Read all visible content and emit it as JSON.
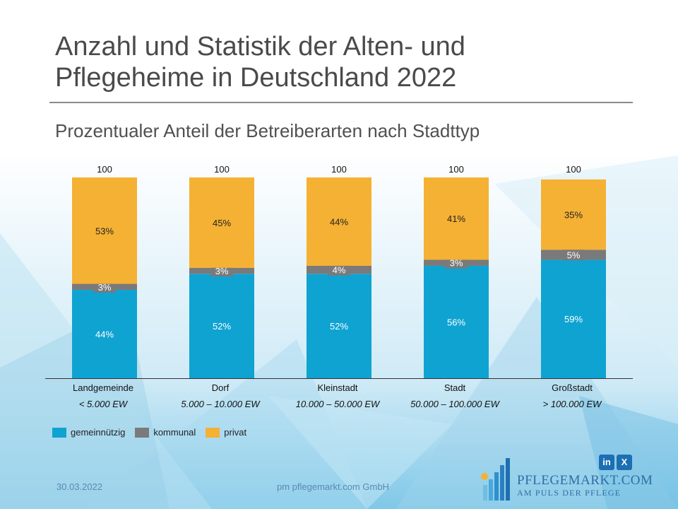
{
  "title_line1": "Anzahl und Statistik der Alten- und",
  "title_line2": "Pflegeheime in Deutschland 2022",
  "subtitle": "Prozentualer Anteil der Betreiberarten nach Stadttyp",
  "colors": {
    "gemeinnuetzig": "#0fa3d1",
    "kommunal": "#7a7a7a",
    "privat": "#f5b134"
  },
  "chart_data": {
    "type": "bar",
    "stacked": true,
    "title": "Prozentualer Anteil der Betreiberarten nach Stadttyp",
    "categories": [
      "Landgemeinde",
      "Dorf",
      "Kleinstadt",
      "Stadt",
      "Großstadt"
    ],
    "sublabels": [
      "< 5.000 EW",
      "5.000 – 10.000 EW",
      "10.000 – 50.000 EW",
      "50.000 – 100.000 EW",
      "> 100.000 EW"
    ],
    "totals": [
      "100",
      "100",
      "100",
      "100",
      "100"
    ],
    "series": [
      {
        "name": "gemeinnützig",
        "values": [
          44,
          52,
          52,
          56,
          59
        ],
        "labels": [
          "44%",
          "52%",
          "52%",
          "56%",
          "59%"
        ]
      },
      {
        "name": "kommunal",
        "values": [
          3,
          3,
          4,
          3,
          5
        ],
        "labels": [
          "3%",
          "3%",
          "4%",
          "3%",
          "5%"
        ]
      },
      {
        "name": "privat",
        "values": [
          53,
          45,
          44,
          41,
          35
        ],
        "labels": [
          "53%",
          "45%",
          "44%",
          "41%",
          "35%"
        ]
      }
    ],
    "ylim": [
      0,
      100
    ],
    "legend": "bottom-left"
  },
  "footer": {
    "date": "30.03.2022",
    "company": "pm pflegemarkt.com GmbH"
  },
  "logo": {
    "name": "PFLEGEMARKT.COM",
    "tagline": "AM PULS DER PFLEGE"
  },
  "social": {
    "linkedin": "in",
    "xing": "X"
  }
}
